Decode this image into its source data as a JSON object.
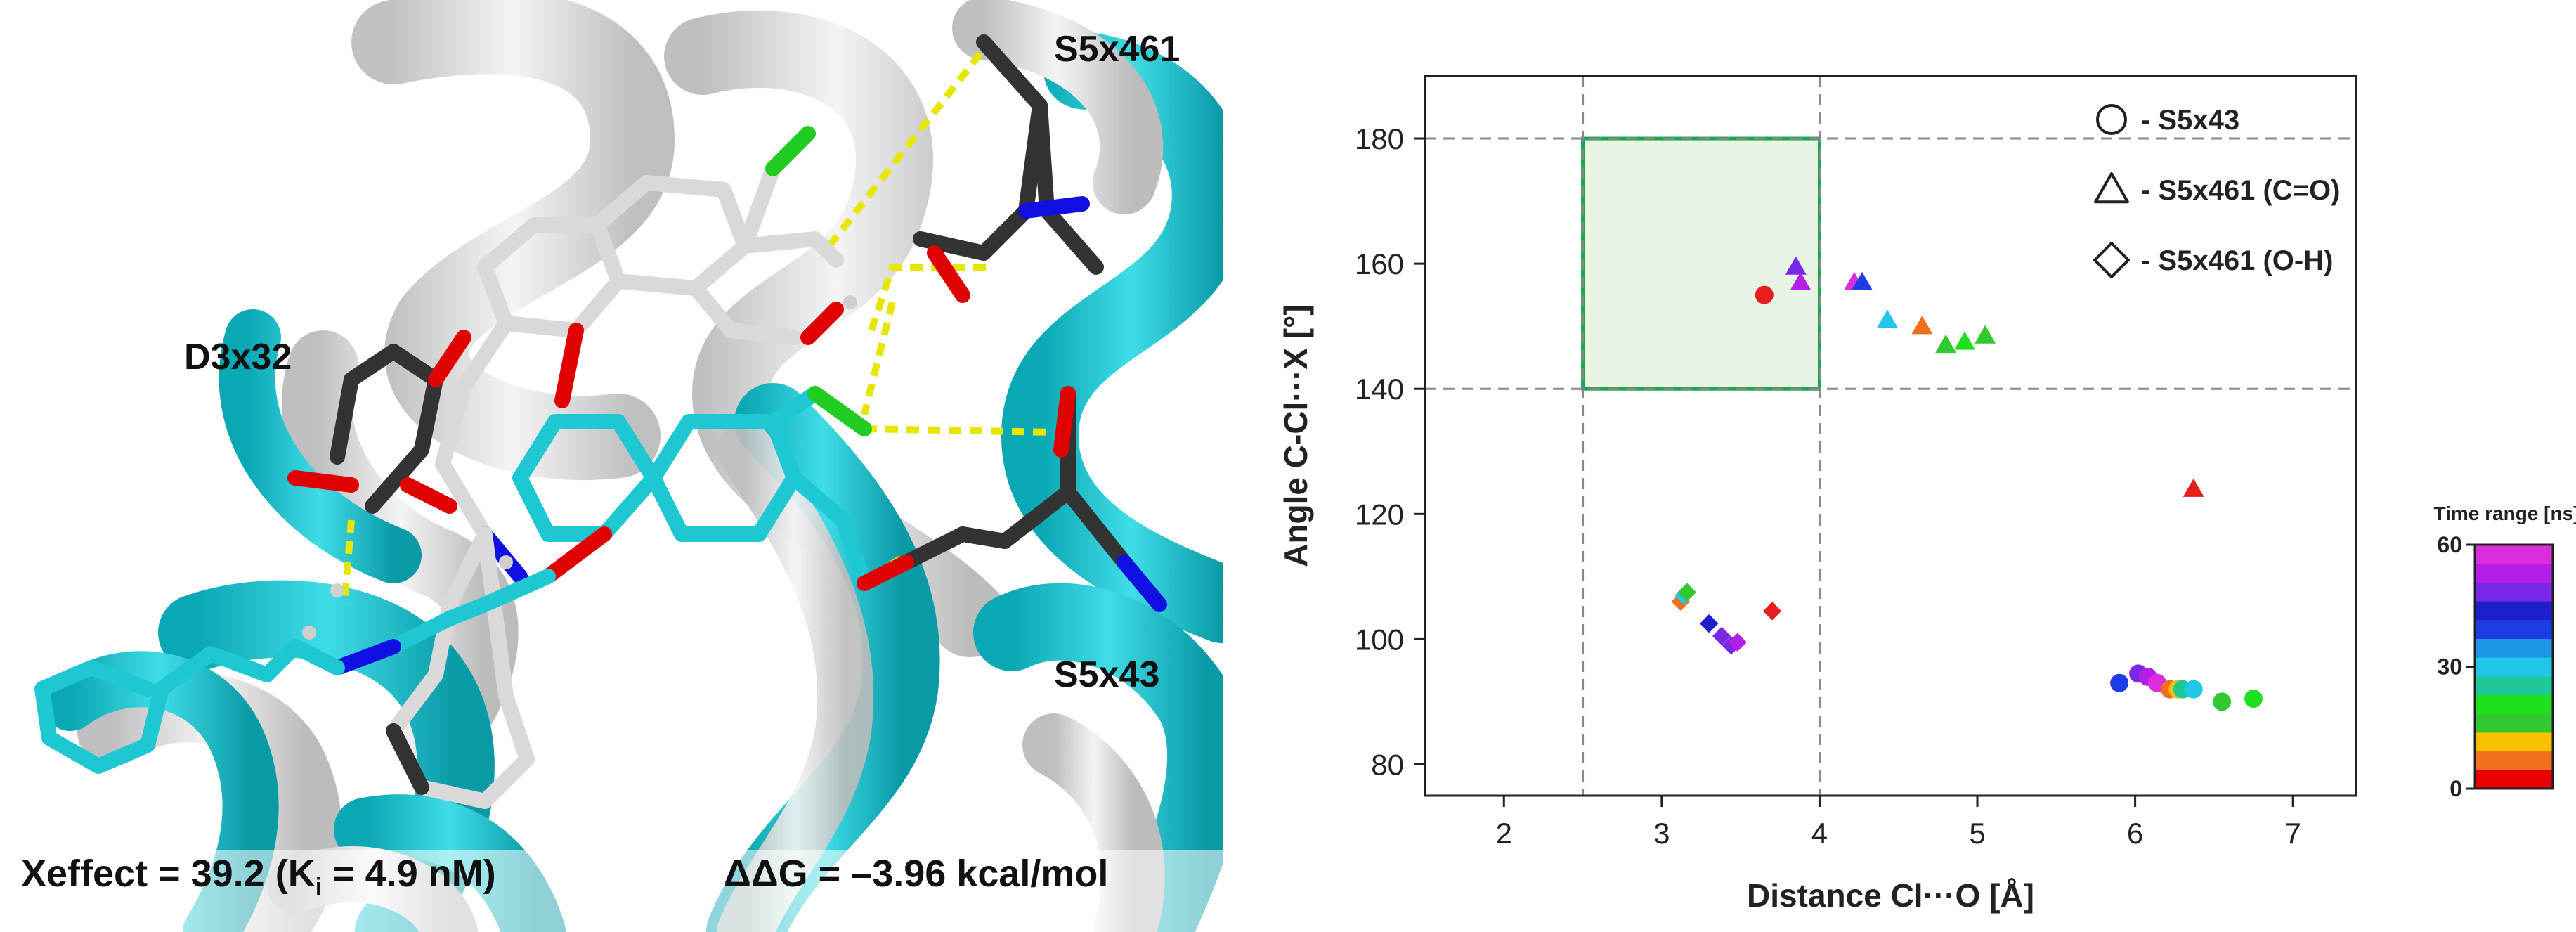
{
  "structure_panel": {
    "labels": {
      "s5x461": "S5x461",
      "d3x32": "D3x32",
      "s5x43": "S5x43"
    },
    "xeffect": "Xeffect = 39.2 (K",
    "xeffect_sub": "i",
    "xeffect_end": " = 4.9 nM)",
    "ddg": "ΔΔG = –3.96 kcal/mol",
    "colors": {
      "ribbon_cyan": "#1ec8d2",
      "ribbon_white": "#e6e6e6",
      "carbon_dark": "#333333",
      "oxygen": "#e00000",
      "nitrogen": "#1010e0",
      "chlorine": "#22cc22",
      "hbond": "#e6e600"
    }
  },
  "chart_data": {
    "type": "scatter",
    "xlabel": "Distance Cl···O [Å]",
    "ylabel": "Angle C-Cl···X [°]",
    "xlim": [
      1.5,
      7.4
    ],
    "ylim": [
      75,
      190
    ],
    "xticks": [
      "2",
      "3",
      "4",
      "5",
      "6",
      "7"
    ],
    "xtick_values": [
      2,
      3,
      4,
      5,
      6,
      7
    ],
    "yticks": [
      "80",
      "100",
      "120",
      "140",
      "160",
      "180"
    ],
    "ytick_values": [
      80,
      100,
      120,
      140,
      160,
      180
    ],
    "grid": false,
    "dashed_vlines": [
      2.5,
      4.0
    ],
    "dashed_hlines": [
      140,
      180
    ],
    "highlight_region": {
      "x": [
        2.5,
        4.0
      ],
      "y": [
        140,
        180
      ],
      "fill": "#e9f5e4",
      "stroke": "#1aa84a"
    },
    "legend_position": "top-right",
    "legend": [
      {
        "marker": "circle",
        "label": "- S5x43"
      },
      {
        "marker": "triangle",
        "label": "- S5x461 (C=O)"
      },
      {
        "marker": "diamond",
        "label": "- S5x461 (O-H)"
      }
    ],
    "colorbar": {
      "title": "Time range [ns]",
      "ticks": [
        "0",
        "30",
        "60"
      ],
      "tick_values": [
        0,
        30,
        60
      ],
      "colors": [
        "#e60000",
        "#f07020",
        "#f7c000",
        "#32c832",
        "#1ee01e",
        "#1ec896",
        "#1ec8e6",
        "#1e96e6",
        "#1e3ce6",
        "#1e1ecd",
        "#7828e6",
        "#b41ee6",
        "#dc2ddc"
      ]
    },
    "series": [
      {
        "marker": "circle",
        "points": [
          {
            "x": 3.65,
            "y": 155,
            "color": "#e61e1e"
          },
          {
            "x": 5.9,
            "y": 93,
            "color": "#1e3ce6"
          },
          {
            "x": 6.02,
            "y": 94.5,
            "color": "#7828e6"
          },
          {
            "x": 6.08,
            "y": 94,
            "color": "#b41ee6"
          },
          {
            "x": 6.14,
            "y": 93,
            "color": "#dc2ddc"
          },
          {
            "x": 6.22,
            "y": 92,
            "color": "#f07020"
          },
          {
            "x": 6.27,
            "y": 92,
            "color": "#f7c000"
          },
          {
            "x": 6.3,
            "y": 92,
            "color": "#1ec896"
          },
          {
            "x": 6.37,
            "y": 92,
            "color": "#1ec8e6"
          },
          {
            "x": 6.55,
            "y": 90,
            "color": "#32c832"
          },
          {
            "x": 6.75,
            "y": 90.5,
            "color": "#1ee01e"
          }
        ]
      },
      {
        "marker": "triangle",
        "points": [
          {
            "x": 3.85,
            "y": 159.5,
            "color": "#7828e6"
          },
          {
            "x": 3.88,
            "y": 157,
            "color": "#b41ee6"
          },
          {
            "x": 4.22,
            "y": 157,
            "color": "#dc2ddc"
          },
          {
            "x": 4.27,
            "y": 157,
            "color": "#1e3ce6"
          },
          {
            "x": 4.43,
            "y": 151,
            "color": "#1ec8e6"
          },
          {
            "x": 4.65,
            "y": 150,
            "color": "#f07020"
          },
          {
            "x": 4.8,
            "y": 147,
            "color": "#32c832"
          },
          {
            "x": 4.92,
            "y": 147.5,
            "color": "#1ee01e"
          },
          {
            "x": 5.05,
            "y": 148.5,
            "color": "#32c832"
          },
          {
            "x": 6.37,
            "y": 124,
            "color": "#e61e1e"
          }
        ]
      },
      {
        "marker": "diamond",
        "points": [
          {
            "x": 3.12,
            "y": 106,
            "color": "#f07020"
          },
          {
            "x": 3.14,
            "y": 107,
            "color": "#1ec8e6"
          },
          {
            "x": 3.16,
            "y": 107.5,
            "color": "#32c832"
          },
          {
            "x": 3.3,
            "y": 102.5,
            "color": "#1e1ecd"
          },
          {
            "x": 3.38,
            "y": 100.5,
            "color": "#7828e6"
          },
          {
            "x": 3.44,
            "y": 99,
            "color": "#7828e6"
          },
          {
            "x": 3.48,
            "y": 99.5,
            "color": "#b41ee6"
          },
          {
            "x": 3.7,
            "y": 104.5,
            "color": "#e61e1e"
          }
        ]
      }
    ]
  }
}
